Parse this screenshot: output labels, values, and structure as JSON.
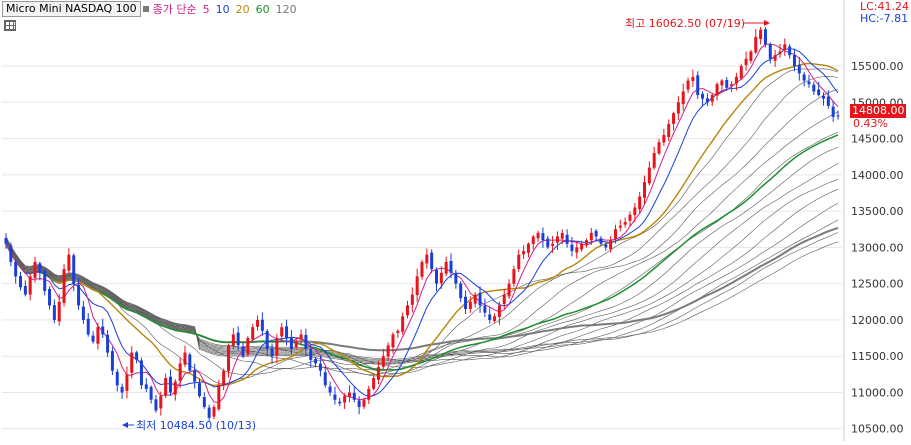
{
  "legend": {
    "ticker": "Micro Mini NASDAQ 100",
    "close_label": "종가 단순",
    "ma_items": [
      {
        "label": "5",
        "color": "#d01f8a"
      },
      {
        "label": "10",
        "color": "#1a3fd6"
      },
      {
        "label": "20",
        "color": "#b8860b"
      },
      {
        "label": "60",
        "color": "#1e8f2e"
      },
      {
        "label": "120",
        "color": "#7a7a7a"
      }
    ]
  },
  "lc_label": "LC:41.24",
  "hc_label": "HC:-7.81",
  "last_price": "14808.00",
  "change_pct": "0.43%",
  "colors": {
    "up": "#e8141b",
    "down": "#1a3fd6",
    "ma5": "#d01f8a",
    "ma20": "#b8860b",
    "ma60": "#1e8f2e",
    "ma120": "#7a7a7a"
  },
  "chart_data": {
    "type": "candlestick",
    "title": "Micro Mini NASDAQ 100",
    "ylim": [
      10400,
      16300
    ],
    "y_ticks": [
      "15500.00",
      "15000.00",
      "14500.00",
      "14000.00",
      "13500.00",
      "13000.00",
      "12500.00",
      "12000.00",
      "11500.00",
      "11000.00",
      "10500.00"
    ],
    "y_tick_values": [
      15500,
      15000,
      14500,
      14000,
      13500,
      13000,
      12500,
      12000,
      11500,
      11000,
      10500
    ],
    "grid": true,
    "moving_averages": [
      5,
      10,
      20,
      60,
      120
    ],
    "annotations": {
      "high": {
        "text": "최고 16062.50 (07/19)",
        "value": 16062.5
      },
      "low": {
        "text": "최저 10484.50 (10/13)",
        "value": 10484.5
      }
    },
    "close_series": [
      13050,
      12800,
      12600,
      12450,
      12350,
      12600,
      12800,
      12650,
      12400,
      12200,
      12000,
      12250,
      12700,
      12900,
      12500,
      12200,
      12000,
      11800,
      11700,
      11900,
      11800,
      11550,
      11300,
      11100,
      11000,
      11250,
      11550,
      11450,
      11100,
      11050,
      10900,
      10750,
      10950,
      11200,
      11000,
      11150,
      11400,
      11550,
      11300,
      11150,
      10950,
      10800,
      10650,
      10800,
      11100,
      11300,
      11650,
      11800,
      11650,
      11500,
      11750,
      11900,
      12000,
      11850,
      11600,
      11500,
      11750,
      11900,
      11750,
      11600,
      11700,
      11800,
      11600,
      11450,
      11400,
      11300,
      11100,
      11000,
      10900,
      10850,
      10950,
      11000,
      10900,
      10800,
      10900,
      11050,
      11200,
      11350,
      11500,
      11650,
      11800,
      11850,
      12050,
      12200,
      12350,
      12600,
      12800,
      12900,
      12700,
      12500,
      12650,
      12800,
      12650,
      12500,
      12300,
      12150,
      12250,
      12350,
      12200,
      12100,
      12000,
      12050,
      12200,
      12350,
      12500,
      12700,
      12900,
      12950,
      13050,
      13150,
      13200,
      13100,
      13000,
      13050,
      13150,
      13200,
      13050,
      12950,
      13000,
      13050,
      13100,
      13200,
      13150,
      13050,
      13000,
      13100,
      13250,
      13300,
      13350,
      13450,
      13550,
      13700,
      13900,
      14100,
      14300,
      14450,
      14550,
      14700,
      14850,
      15000,
      15150,
      15300,
      15350,
      15100,
      15050,
      15000,
      15100,
      15250,
      15300,
      15200,
      15250,
      15350,
      15500,
      15600,
      15700,
      15900,
      16000,
      15800,
      15600,
      15650,
      15700,
      15800,
      15650,
      15500,
      15400,
      15300,
      15250,
      15150,
      15100,
      15050,
      14950,
      14800,
      14808
    ]
  }
}
